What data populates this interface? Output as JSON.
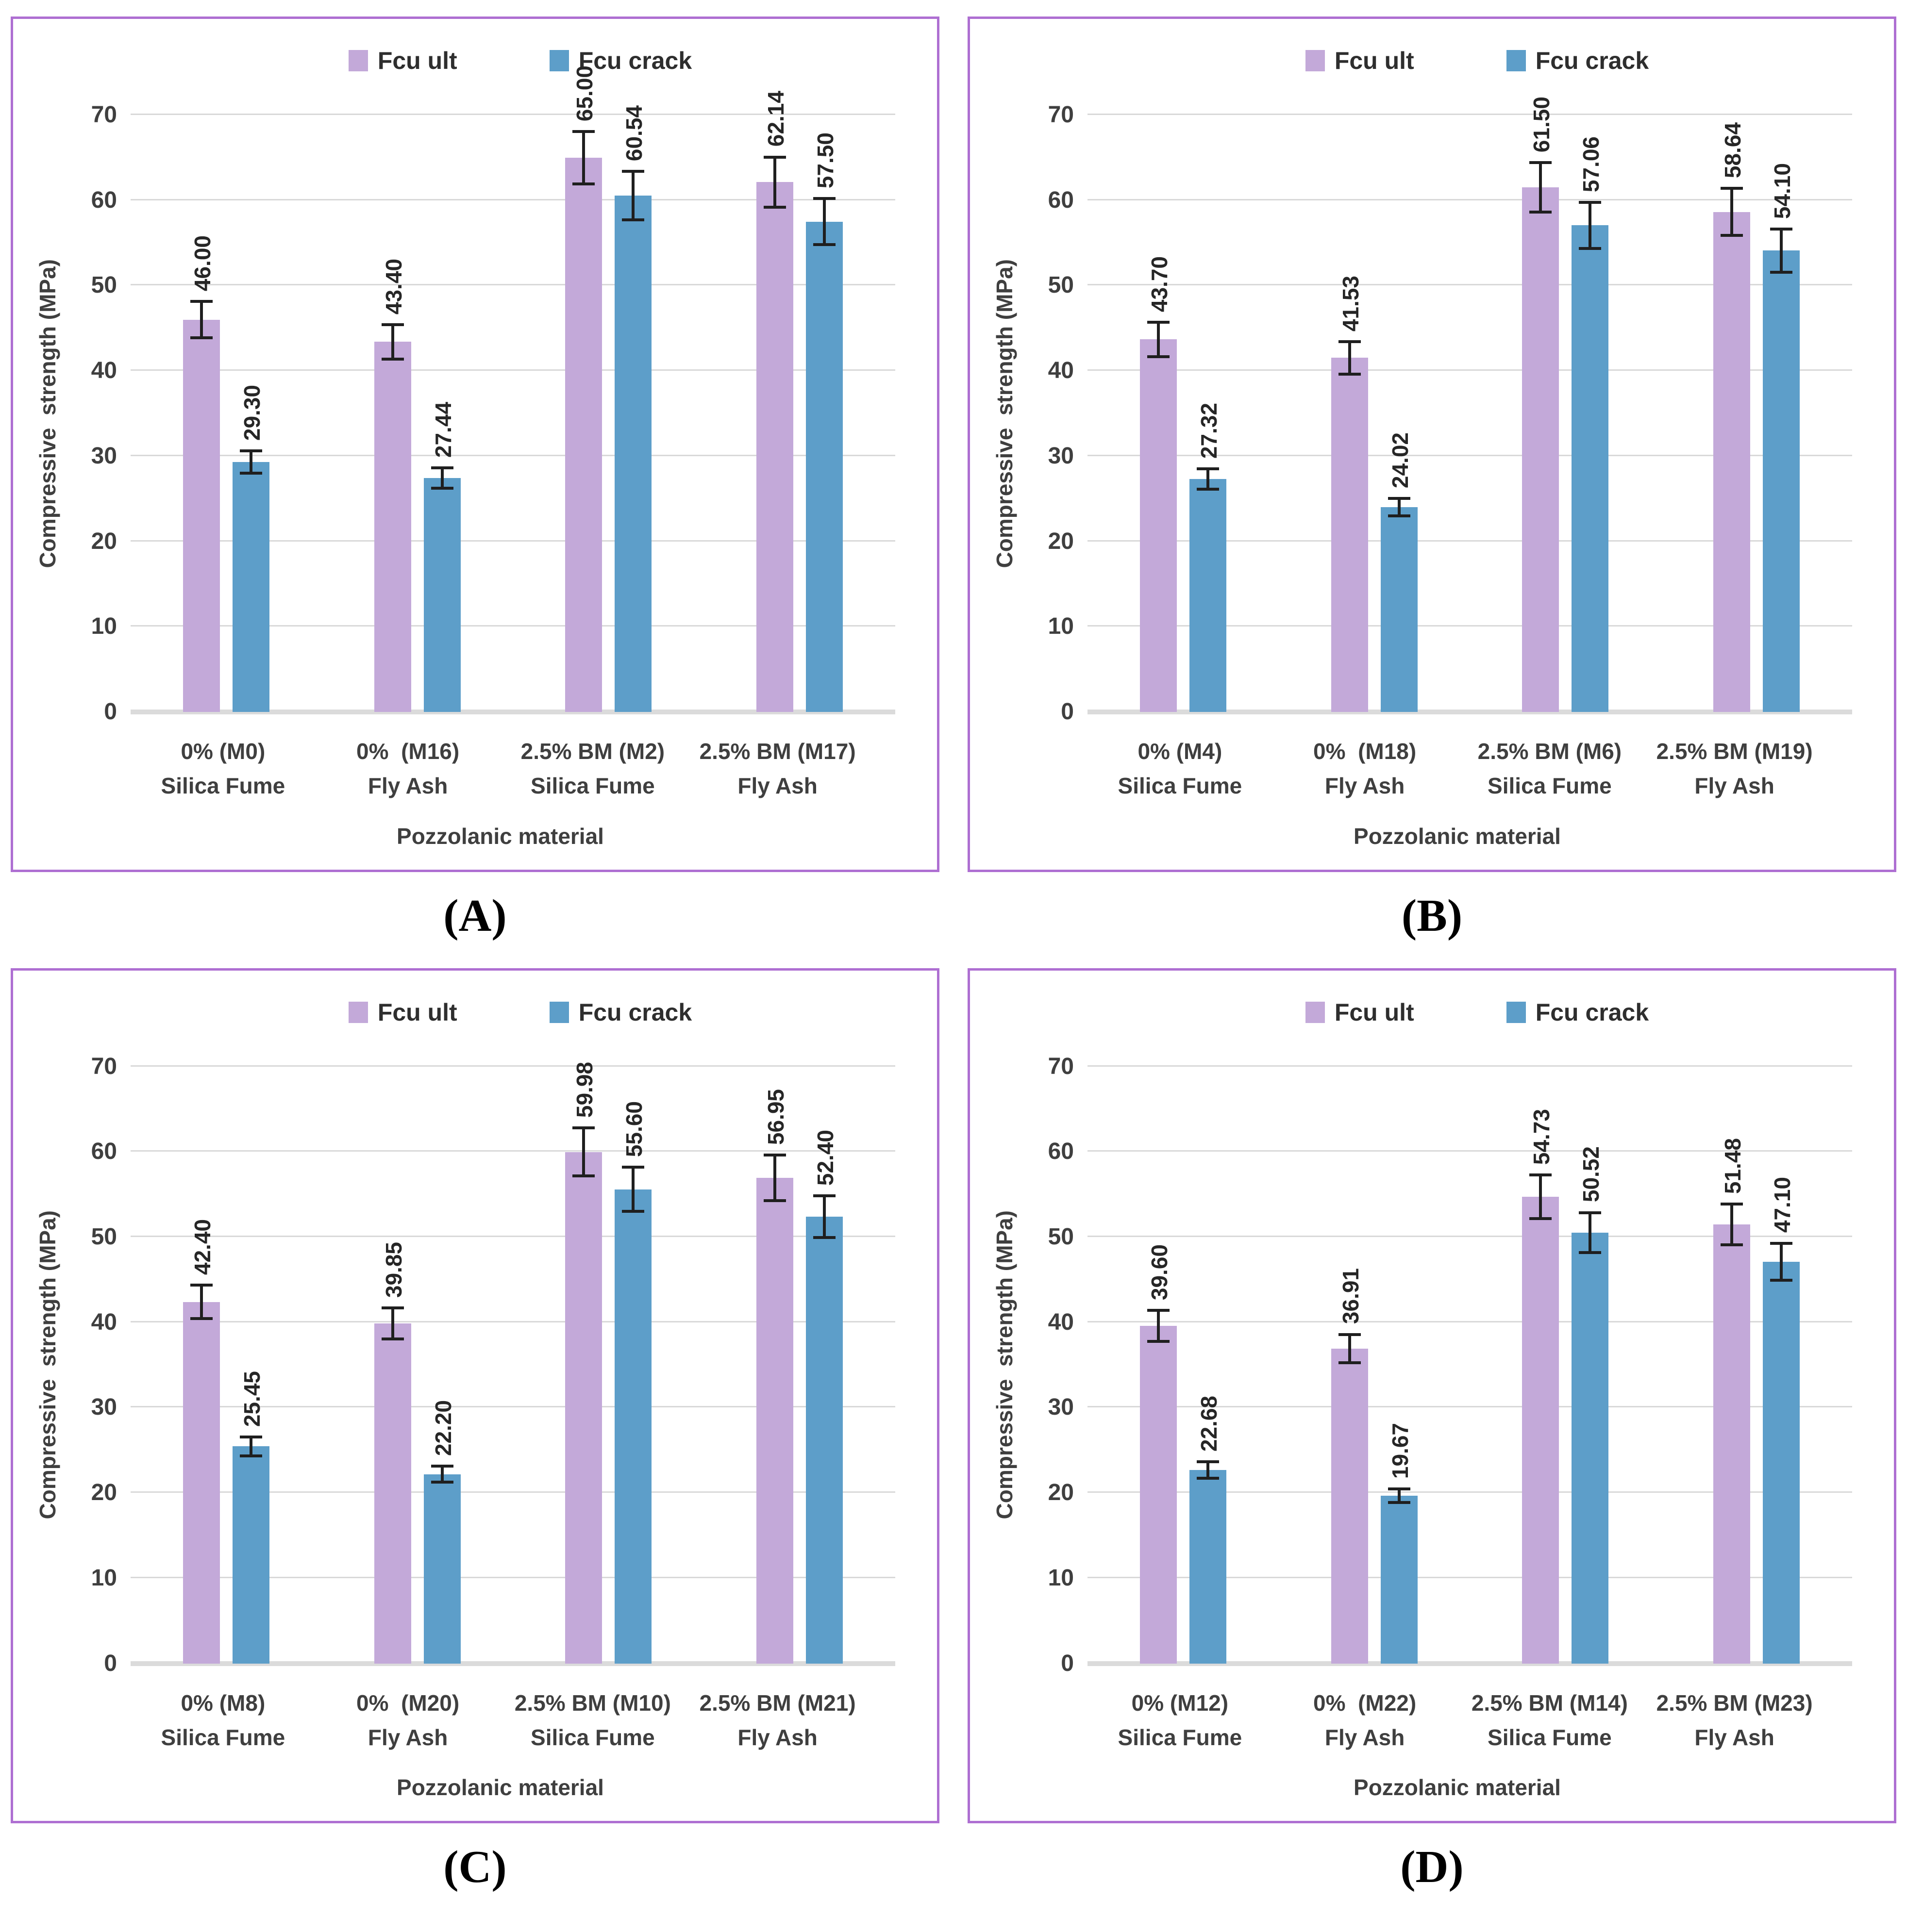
{
  "page": {
    "background": "#ffffff"
  },
  "colors": {
    "fcu_ult": "#c3a9d9",
    "fcu_crack": "#5d9ec9",
    "panel_border": "#ae6fd2",
    "gridline": "#d9d9d9",
    "axis_line": "#dbdbdb",
    "text": "#3f3f3f",
    "data_label_text": "#262626",
    "error_bar": "#1f1f1f",
    "caption_text": "#000000"
  },
  "legend": {
    "position": "top",
    "items": [
      {
        "label": "Fcu ult",
        "color_key": "fcu_ult"
      },
      {
        "label": "Fcu crack",
        "color_key": "fcu_crack"
      }
    ]
  },
  "axes": {
    "y_title": "Compressive  strength (MPa)",
    "x_title": "Pozzolanic material",
    "y_ticks": [
      0,
      10,
      20,
      30,
      40,
      50,
      60,
      70
    ],
    "y_max": 70,
    "grid": true
  },
  "chart_data": [
    {
      "id": "A",
      "caption": "(A)",
      "type": "bar",
      "xlabel": "Pozzolanic material",
      "ylabel": "Compressive  strength (MPa)",
      "ylim": [
        0,
        70
      ],
      "legend_position": "top",
      "error_bars": true,
      "error_pct": 5,
      "categories": [
        {
          "line1": "0% (M0)",
          "line2": "Silica Fume"
        },
        {
          "line1": "0%  (M16)",
          "line2": "Fly Ash"
        },
        {
          "line1": "2.5% BM (M2)",
          "line2": "Silica Fume"
        },
        {
          "line1": "2.5% BM (M17)",
          "line2": "Fly Ash"
        }
      ],
      "series": [
        {
          "name": "Fcu ult",
          "values": [
            "46.00",
            "43.40",
            "65.00",
            "62.14"
          ]
        },
        {
          "name": "Fcu crack",
          "values": [
            "29.30",
            "27.44",
            "60.54",
            "57.50"
          ]
        }
      ]
    },
    {
      "id": "B",
      "caption": "(B)",
      "type": "bar",
      "xlabel": "Pozzolanic material",
      "ylabel": "Compressive  strength (MPa)",
      "ylim": [
        0,
        70
      ],
      "legend_position": "top",
      "error_bars": true,
      "error_pct": 5,
      "categories": [
        {
          "line1": "0% (M4)",
          "line2": "Silica Fume"
        },
        {
          "line1": "0%  (M18)",
          "line2": "Fly Ash"
        },
        {
          "line1": "2.5% BM (M6)",
          "line2": "Silica Fume"
        },
        {
          "line1": "2.5% BM (M19)",
          "line2": "Fly Ash"
        }
      ],
      "series": [
        {
          "name": "Fcu ult",
          "values": [
            "43.70",
            "41.53",
            "61.50",
            "58.64"
          ]
        },
        {
          "name": "Fcu crack",
          "values": [
            "27.32",
            "24.02",
            "57.06",
            "54.10"
          ]
        }
      ]
    },
    {
      "id": "C",
      "caption": "(C)",
      "type": "bar",
      "xlabel": "Pozzolanic material",
      "ylabel": "Compressive  strength (MPa)",
      "ylim": [
        0,
        70
      ],
      "legend_position": "top",
      "error_bars": true,
      "error_pct": 5,
      "categories": [
        {
          "line1": "0% (M8)",
          "line2": "Silica Fume"
        },
        {
          "line1": "0%  (M20)",
          "line2": "Fly Ash"
        },
        {
          "line1": "2.5% BM (M10)",
          "line2": "Silica Fume"
        },
        {
          "line1": "2.5% BM (M21)",
          "line2": "Fly Ash"
        }
      ],
      "series": [
        {
          "name": "Fcu ult",
          "values": [
            "42.40",
            "39.85",
            "59.98",
            "56.95"
          ]
        },
        {
          "name": "Fcu crack",
          "values": [
            "25.45",
            "22.20",
            "55.60",
            "52.40"
          ]
        }
      ]
    },
    {
      "id": "D",
      "caption": "(D)",
      "type": "bar",
      "xlabel": "Pozzolanic material",
      "ylabel": "Compressive  strength (MPa)",
      "ylim": [
        0,
        70
      ],
      "legend_position": "top",
      "error_bars": true,
      "error_pct": 5,
      "categories": [
        {
          "line1": "0% (M12)",
          "line2": "Silica Fume"
        },
        {
          "line1": "0%  (M22)",
          "line2": "Fly Ash"
        },
        {
          "line1": "2.5% BM (M14)",
          "line2": "Silica Fume"
        },
        {
          "line1": "2.5% BM (M23)",
          "line2": "Fly Ash"
        }
      ],
      "series": [
        {
          "name": "Fcu ult",
          "values": [
            "39.60",
            "36.91",
            "54.73",
            "51.48"
          ]
        },
        {
          "name": "Fcu crack",
          "values": [
            "22.68",
            "19.67",
            "50.52",
            "47.10"
          ]
        }
      ]
    }
  ]
}
